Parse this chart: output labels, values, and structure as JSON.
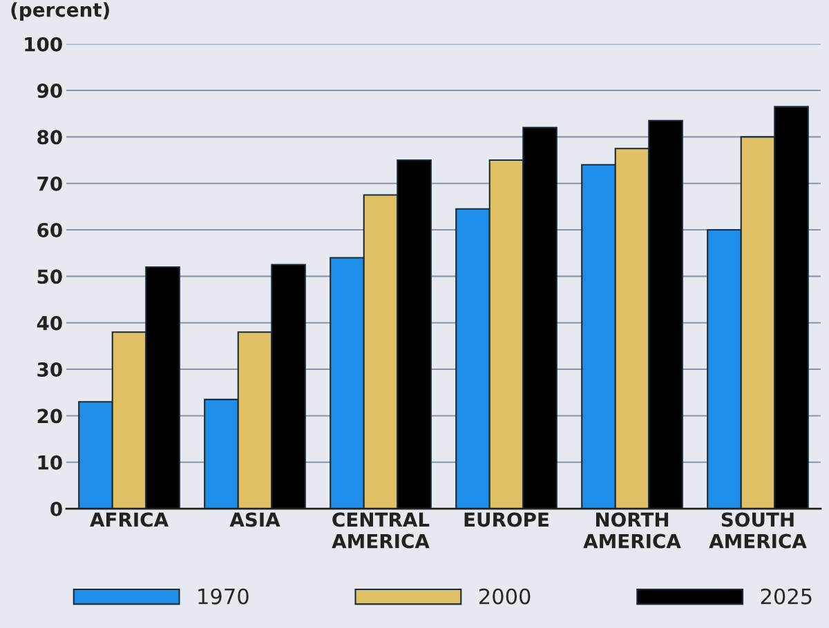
{
  "chart_data": {
    "type": "bar",
    "ylabel": "(percent)",
    "categories": [
      "AFRICA",
      "ASIA",
      "CENTRAL\nAMERICA",
      "EUROPE",
      "NORTH\nAMERICA",
      "SOUTH\nAMERICA"
    ],
    "series": [
      {
        "name": "1970",
        "color": "#1e8ee8",
        "values": [
          23,
          23.5,
          54,
          64.5,
          74,
          60
        ]
      },
      {
        "name": "2000",
        "color": "#dfc064",
        "values": [
          38,
          38,
          67.5,
          75,
          77.5,
          80
        ]
      },
      {
        "name": "2025",
        "color": "#000000",
        "values": [
          52,
          52.5,
          75,
          82,
          83.5,
          86.5
        ]
      }
    ],
    "ylim": [
      0,
      100
    ],
    "yticks": [
      0,
      10,
      20,
      30,
      40,
      50,
      60,
      70,
      80,
      90,
      100
    ],
    "grid": "y",
    "legend": "bottom"
  }
}
